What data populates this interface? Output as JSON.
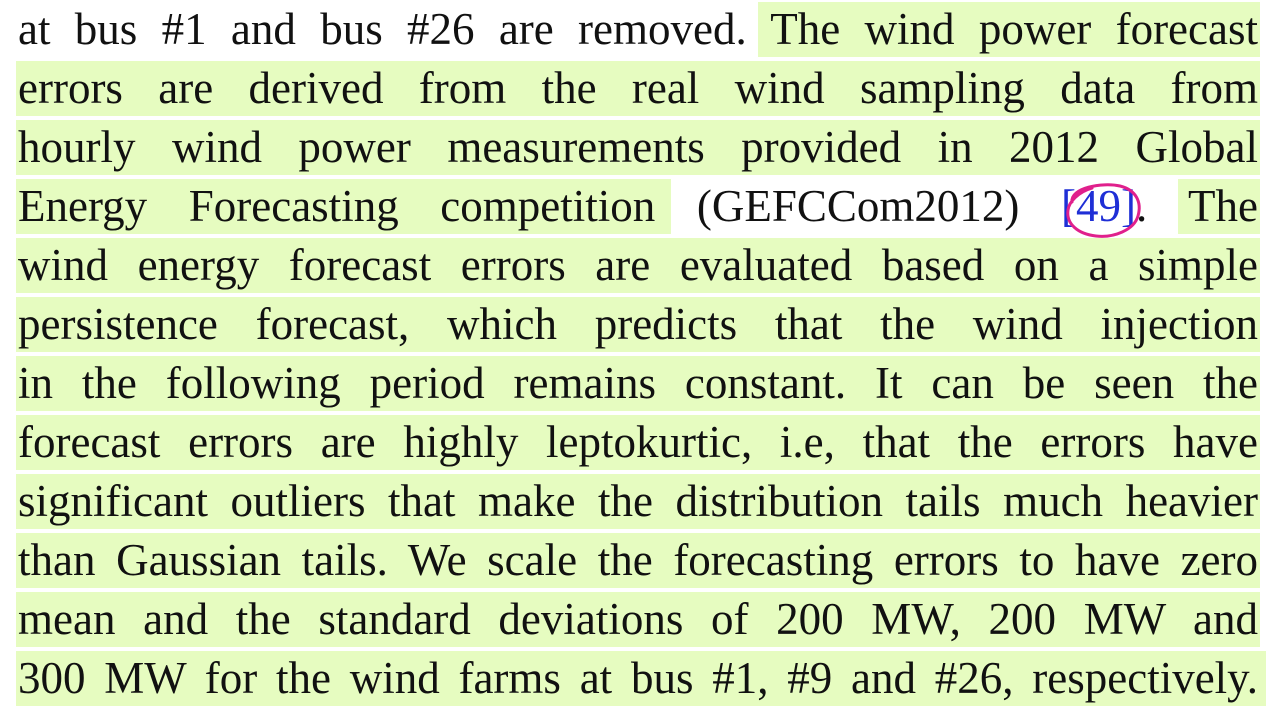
{
  "document": {
    "highlight_color": "#e6fcc0",
    "citation_color": "#1f2fd6",
    "annotation_color": "#e0208c",
    "lines": [
      "at bus #1 and bus #26 are removed. The wind power forecast",
      "errors are derived from the real wind sampling data from",
      "hourly wind power measurements provided in 2012 Global",
      "Energy Forecasting competition",
      "wind energy forecast errors are evaluated based on a simple",
      "persistence forecast, which predicts that the wind injection",
      "in the following period remains constant. It can be seen the",
      "forecast errors are highly leptokurtic, i.e, that the errors have",
      "significant outliers that make the distribution tails much heavier",
      "than Gaussian tails. We scale the forecasting errors to have zero",
      "mean and the standard deviations of 200 MW, 200 MW and",
      "300 MW for the wind farms at bus #1, #9 and #26, respectively."
    ],
    "line4_acronym": " (GEFCCom2012) ",
    "line4_citation": "[49]",
    "line4_tail_a": ".",
    "line4_tail_b": " The"
  }
}
